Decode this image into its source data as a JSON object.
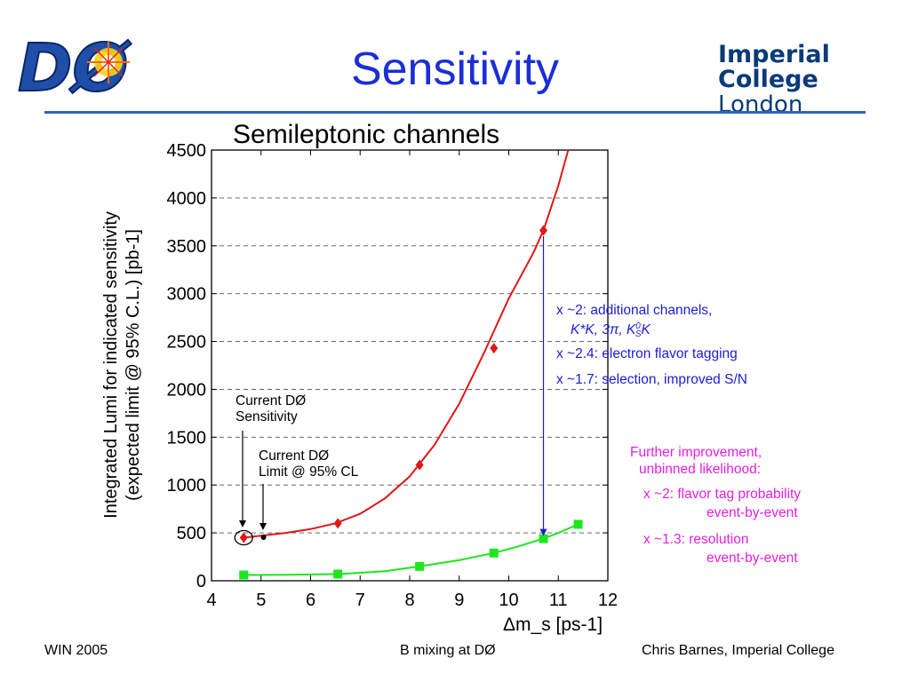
{
  "slide": {
    "title": "Sensitivity",
    "logo_left_text": "DØ",
    "logo_right_line1": "Imperial College",
    "logo_right_line2": "London"
  },
  "footer": {
    "left": "WIN 2005",
    "center": "B mixing at DØ",
    "right": "Chris Barnes, Imperial College"
  },
  "annotations": {
    "current_sensitivity_l1": "Current DØ",
    "current_sensitivity_l2": "Sensitivity",
    "current_limit_l1": "Current DØ",
    "current_limit_l2": "Limit @ 95% CL",
    "blue1_a": "x ~2: additional channels,",
    "blue1_b_k": "K*K, 3",
    "blue1_b_pi": "π",
    "blue1_b_k2": ", K",
    "blue1_b_sup": "0",
    "blue1_b_sub": "S",
    "blue1_b_end": "K",
    "blue2": "x ~2.4: electron flavor tagging",
    "blue3": "x ~1.7: selection, improved S/N",
    "mag1": "Further improvement,",
    "mag2": "unbinned likelihood:",
    "mag3": "x ~2: flavor tag probability",
    "mag4": "event-by-event",
    "mag5": "x ~1.3: resolution",
    "mag6": "event-by-event"
  },
  "colors": {
    "title": "#1a2fd6",
    "red_series": "#e01818",
    "green_series": "#1ee61e",
    "blue_text": "#1c1cd8",
    "magenta_text": "#e81ee0",
    "grid": "#555555"
  },
  "chart_data": {
    "type": "line",
    "title": "Semileptonic channels",
    "xlabel": "Δm_s  [ps-1]",
    "ylabel_line1": "Integrated Lumi for indicated sensitivity",
    "ylabel_line2": "(expected limit @ 95% C.L.)    [pb-1]",
    "xlim": [
      4,
      12
    ],
    "ylim": [
      0,
      4500
    ],
    "xticks": [
      4,
      5,
      6,
      7,
      8,
      9,
      10,
      11,
      12
    ],
    "yticks": [
      0,
      500,
      1000,
      1500,
      2000,
      2500,
      3000,
      3500,
      4000,
      4500
    ],
    "grid": "horizontal dashed",
    "series": [
      {
        "color": "#e01818",
        "marker": "diamond",
        "x": [
          4.65,
          6.55,
          8.2,
          9.7,
          10.7
        ],
        "y": [
          450,
          600,
          1210,
          2430,
          3660
        ],
        "curve_x": [
          4.65,
          5.0,
          5.5,
          6.0,
          6.5,
          7.0,
          7.5,
          8.0,
          8.5,
          9.0,
          9.5,
          10.0,
          10.5,
          10.7,
          11.0,
          11.2
        ],
        "curve_y": [
          450,
          470,
          500,
          540,
          600,
          700,
          860,
          1090,
          1420,
          1850,
          2380,
          2950,
          3430,
          3660,
          4130,
          4500
        ]
      },
      {
        "color": "#1ee61e",
        "marker": "square",
        "x": [
          4.65,
          6.55,
          8.2,
          9.7,
          10.7,
          11.4
        ],
        "y": [
          60,
          70,
          150,
          290,
          440,
          590
        ],
        "curve_x": [
          4.65,
          5.5,
          6.55,
          7.5,
          8.2,
          9.0,
          9.7,
          10.2,
          10.7,
          11.0,
          11.4
        ],
        "curve_y": [
          60,
          62,
          70,
          100,
          150,
          215,
          290,
          360,
          440,
          500,
          590
        ]
      }
    ],
    "markers_extra": [
      {
        "label": "Current DØ Limit @ 95% CL",
        "x": 5.05,
        "y": 455
      }
    ],
    "arrow": {
      "x": 10.7,
      "y_from": 3600,
      "y_to": 440
    }
  }
}
